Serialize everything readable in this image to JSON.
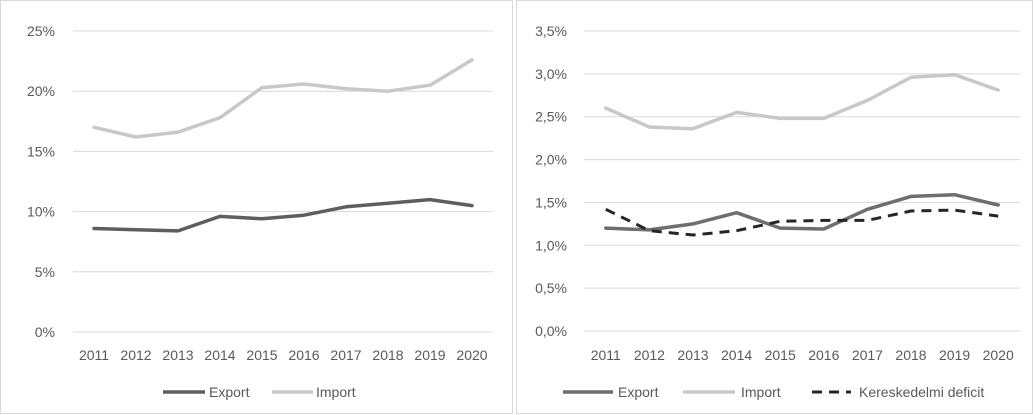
{
  "chart_data": [
    {
      "type": "line",
      "categories": [
        "2011",
        "2012",
        "2013",
        "2014",
        "2015",
        "2016",
        "2017",
        "2018",
        "2019",
        "2020"
      ],
      "ylim": [
        0,
        25
      ],
      "yticks": [
        "0%",
        "5%",
        "10%",
        "15%",
        "20%",
        "25%"
      ],
      "grid": true,
      "legend_position": "bottom",
      "series": [
        {
          "name": "Export",
          "color": "#5e5e5e",
          "dash": "solid",
          "values": [
            8.6,
            8.5,
            8.4,
            9.6,
            9.4,
            9.7,
            10.4,
            10.7,
            11.0,
            10.5
          ]
        },
        {
          "name": "Import",
          "color": "#c8c8c8",
          "dash": "solid",
          "values": [
            17.0,
            16.2,
            16.6,
            17.8,
            20.3,
            20.6,
            20.2,
            20.0,
            20.5,
            22.6
          ]
        }
      ]
    },
    {
      "type": "line",
      "categories": [
        "2011",
        "2012",
        "2013",
        "2014",
        "2015",
        "2016",
        "2017",
        "2018",
        "2019",
        "2020"
      ],
      "ylim": [
        0,
        3.5
      ],
      "yticks": [
        "0,0%",
        "0,5%",
        "1,0%",
        "1,5%",
        "2,0%",
        "2,5%",
        "3,0%",
        "3,5%"
      ],
      "grid": true,
      "legend_position": "bottom",
      "series": [
        {
          "name": "Export",
          "color": "#6e6e6e",
          "dash": "solid",
          "values": [
            1.2,
            1.18,
            1.25,
            1.38,
            1.2,
            1.19,
            1.42,
            1.57,
            1.59,
            1.47
          ]
        },
        {
          "name": "Import",
          "color": "#c8c8c8",
          "dash": "solid",
          "values": [
            2.6,
            2.38,
            2.36,
            2.55,
            2.48,
            2.48,
            2.69,
            2.96,
            2.99,
            2.81
          ]
        },
        {
          "name": "Kereskedelmi deficit",
          "color": "#262626",
          "dash": "dashed",
          "values": [
            1.42,
            1.17,
            1.12,
            1.17,
            1.28,
            1.29,
            1.29,
            1.4,
            1.41,
            1.34
          ]
        }
      ]
    }
  ]
}
